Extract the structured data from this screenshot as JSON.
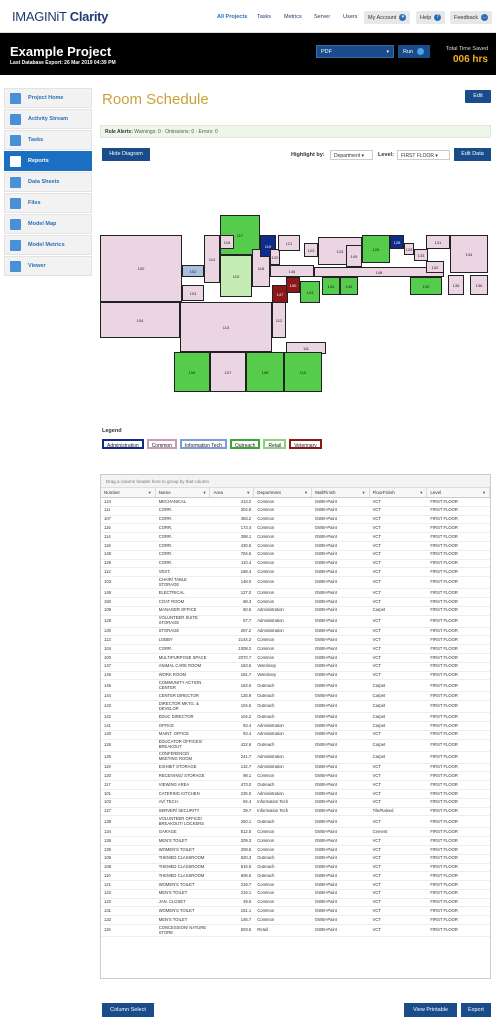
{
  "topnav": {
    "logo_brand": "IMAGINiT",
    "logo_product": "Clarity",
    "links": [
      "All Projects",
      "Tasks",
      "Metrics",
      "Server",
      "Users"
    ],
    "my_account": "My Account",
    "help": "Help",
    "help_icon": "?",
    "feedback": "Feedback"
  },
  "header": {
    "project_title": "Example Project",
    "last_export": "Last Database Export: 26 Mar 2019 04:39 PM",
    "format_select": "PDF",
    "run_label": "Run",
    "time_saved_label": "Total Time Saved",
    "time_saved_value": "006 hrs"
  },
  "sidebar": {
    "items": [
      {
        "label": "Project Home",
        "icon": "home-icon"
      },
      {
        "label": "Activity Stream",
        "icon": "arrows-icon"
      },
      {
        "label": "Tasks",
        "icon": "document-icon"
      },
      {
        "label": "Reports",
        "icon": "report-icon"
      },
      {
        "label": "Data Sheets",
        "icon": "datasheet-icon"
      },
      {
        "label": "Files",
        "icon": "folder-icon"
      },
      {
        "label": "Model Map",
        "icon": "globe-icon"
      },
      {
        "label": "Model Metrics",
        "icon": "bar-chart-icon"
      },
      {
        "label": "Viewer",
        "icon": "viewer-icon"
      }
    ],
    "active": "Reports"
  },
  "page": {
    "title": "Room Schedule",
    "edit_label": "Edit",
    "rule_alerts_label": "Rule Alerts:",
    "rule_alerts_text": "Warnings: 0  ·  Omissions: 0  ·  Errors: 0",
    "hide_diagram": "Hide Diagram",
    "highlight_label": "Highlight by:",
    "highlight_value": "Department",
    "level_label": "Level:",
    "level_value": "FIRST FLOOR",
    "edit_data": "Edit Data"
  },
  "legend": {
    "title": "Legend",
    "items": [
      {
        "label": "Administration",
        "color": "#102b8a"
      },
      {
        "label": "Common",
        "color": "#c89ab8"
      },
      {
        "label": "Information Tech",
        "color": "#7a9ed6"
      },
      {
        "label": "Outreach",
        "color": "#3aa832"
      },
      {
        "label": "Retail",
        "color": "#8fd07a"
      },
      {
        "label": "Veterinary",
        "color": "#8e1818"
      }
    ]
  },
  "plan_rooms": [
    "117",
    "100",
    "102",
    "114",
    "116",
    "118",
    "119",
    "120",
    "121",
    "123",
    "124",
    "126",
    "128",
    "130",
    "131",
    "133",
    "134",
    "135",
    "103",
    "104",
    "113",
    "115",
    "112",
    "143",
    "144",
    "145",
    "146",
    "147",
    "148",
    "149",
    "150",
    "129",
    "111",
    "106",
    "107",
    "108",
    "110",
    "136",
    "132"
  ],
  "grid": {
    "group_hint": "Drag a column header here to group by that column",
    "columns": [
      "Number",
      "Name",
      "Area",
      "Department",
      "WallFinish",
      "FloorFinish",
      "Level"
    ],
    "rows": [
      [
        "124",
        "MECHANICAL",
        "413.2",
        "Common",
        "GWB+Paint",
        "VCT",
        "FIRST FLOOR"
      ],
      [
        "111",
        "CORR.",
        "304.8",
        "Common",
        "GWB+Paint",
        "VCT",
        "FIRST FLOOR"
      ],
      [
        "107",
        "CORR.",
        "383.2",
        "Common",
        "GWB+Paint",
        "VCT",
        "FIRST FLOOR"
      ],
      [
        "116",
        "CORR.",
        "173.4",
        "Common",
        "GWB+Paint",
        "VCT",
        "FIRST FLOOR"
      ],
      [
        "114",
        "CORR.",
        "398.1",
        "Common",
        "GWB+Paint",
        "VCT",
        "FIRST FLOOR"
      ],
      [
        "118",
        "CORR.",
        "430.5",
        "Common",
        "GWB+Paint",
        "VCT",
        "FIRST FLOOR"
      ],
      [
        "148",
        "CORR.",
        "784.6",
        "Common",
        "GWB+Paint",
        "VCT",
        "FIRST FLOOR"
      ],
      [
        "129",
        "CORR.",
        "110.4",
        "Common",
        "GWB+Paint",
        "VCT",
        "FIRST FLOOR"
      ],
      [
        "112",
        "VEST.",
        "188.4",
        "Common",
        "GWB+Paint",
        "VCT",
        "FIRST FLOOR"
      ],
      [
        "103",
        "CHAIR/ TABLE STORAGE",
        "148.0",
        "Common",
        "GWB+Paint",
        "VCT",
        "FIRST FLOOR"
      ],
      [
        "149",
        "ELECTRICAL",
        "127.0",
        "Common",
        "GWB+Paint",
        "VCT",
        "FIRST FLOOR"
      ],
      [
        "150",
        "COAT ROOM",
        "68.3",
        "Common",
        "GWB+Paint",
        "VCT",
        "FIRST FLOOR"
      ],
      [
        "109",
        "MANAGER OFFICE",
        "60.5",
        "Administration",
        "GWB+Paint",
        "Carpet",
        "FIRST FLOOR"
      ],
      [
        "128",
        "VOLUNTEER SUITE STORAGE",
        "67.7",
        "Administration",
        "GWB+Paint",
        "VCT",
        "FIRST FLOOR"
      ],
      [
        "130",
        "STORAGE",
        "287.2",
        "Administration",
        "GWB+Paint",
        "VCT",
        "FIRST FLOOR"
      ],
      [
        "113",
        "LOBBY",
        "2144.2",
        "Common",
        "GWB+Paint",
        "VCT",
        "FIRST FLOOR"
      ],
      [
        "104",
        "CORR.",
        "1008.2",
        "Common",
        "GWB+Paint",
        "VCT",
        "FIRST FLOOR"
      ],
      [
        "100",
        "MULTIPURPOSE SPACE",
        "2070.7",
        "Common",
        "GWB+Paint",
        "VCT",
        "FIRST FLOOR"
      ],
      [
        "147",
        "ANIMAL CARE ROOM",
        "163.5",
        "Veterinary",
        "GWB+Paint",
        "VCT",
        "FIRST FLOOR"
      ],
      [
        "146",
        "WORK ROOM",
        "161.7",
        "Veterinary",
        "GWB+Paint",
        "VCT",
        "FIRST FLOOR"
      ],
      [
        "145",
        "COMMUNITY ACTION CENTER",
        "163.5",
        "Outreach",
        "GWB+Paint",
        "Carpet",
        "FIRST FLOOR"
      ],
      [
        "144",
        "CENTER DIRECTOR",
        "125.9",
        "Outreach",
        "GWB+Paint",
        "Carpet",
        "FIRST FLOOR"
      ],
      [
        "143",
        "DIRECTOR MKTG. & DEVELOP.",
        "104.5",
        "Outreach",
        "GWB+Paint",
        "Carpet",
        "FIRST FLOOR"
      ],
      [
        "142",
        "EDUC DIRECTOR",
        "104.2",
        "Outreach",
        "GWB+Paint",
        "Carpet",
        "FIRST FLOOR"
      ],
      [
        "141",
        "OFFICE",
        "93.4",
        "Administration",
        "GWB+Paint",
        "Carpet",
        "FIRST FLOOR"
      ],
      [
        "140",
        "MAINT. OFFICE",
        "93.4",
        "Administration",
        "GWB+Paint",
        "VCT",
        "FIRST FLOOR"
      ],
      [
        "126",
        "EDUCATOR OFFICES/ BREAKOUT",
        "422.6",
        "Outreach",
        "GWB+Paint",
        "Carpet",
        "FIRST FLOOR"
      ],
      [
        "125",
        "CONFERENCE/ MEETING ROOM",
        "241.7",
        "Administration",
        "GWB+Paint",
        "Carpet",
        "FIRST FLOOR"
      ],
      [
        "119",
        "EXHIBIT STORAGE",
        "132.7",
        "Administration",
        "GWB+Paint",
        "VCT",
        "FIRST FLOOR"
      ],
      [
        "120",
        "RECEIVING/ STORAGE",
        "98.1",
        "Common",
        "GWB+Paint",
        "VCT",
        "FIRST FLOOR"
      ],
      [
        "117",
        "VIEWING AREA",
        "473.0",
        "Outreach",
        "GWB+Paint",
        "VCT",
        "FIRST FLOOR"
      ],
      [
        "101",
        "CATERING KITCHEN",
        "235.0",
        "Administration",
        "GWB+Paint",
        "VCT",
        "FIRST FLOOR"
      ],
      [
        "102",
        "AV/ TECH.",
        "94.4",
        "Information Tech",
        "GWB+Paint",
        "VCT",
        "FIRST FLOOR"
      ],
      [
        "127",
        "SERVER/ SECURITY",
        "39.7",
        "Information Tech",
        "GWB+Paint",
        "Tile/Raised",
        "FIRST FLOOR"
      ],
      [
        "138",
        "VOLUNTEER OFFICE/ BREAKOUT/ LOCKERS",
        "250.1",
        "Outreach",
        "GWB+Paint",
        "VCT",
        "FIRST FLOOR"
      ],
      [
        "134",
        "GARAGE",
        "512.5",
        "Common",
        "GWB+Paint",
        "Cement",
        "FIRST FLOOR"
      ],
      [
        "136",
        "MEN'S TOILET",
        "209.3",
        "Common",
        "GWB+Paint",
        "VCT",
        "FIRST FLOOR"
      ],
      [
        "135",
        "WOMEN'S TOILET",
        "208.6",
        "Common",
        "GWB+Paint",
        "VCT",
        "FIRST FLOOR"
      ],
      [
        "106",
        "THEMED CLASSROOM",
        "620.3",
        "Outreach",
        "GWB+Paint",
        "VCT",
        "FIRST FLOOR"
      ],
      [
        "108",
        "THEMED CLASSROOM",
        "615.6",
        "Outreach",
        "GWB+Paint",
        "VCT",
        "FIRST FLOOR"
      ],
      [
        "110",
        "THEMED CLASSROOM",
        "608.6",
        "Outreach",
        "GWB+Paint",
        "VCT",
        "FIRST FLOOR"
      ],
      [
        "121",
        "WOMEN'S TOILET",
        "219.7",
        "Common",
        "GWB+Paint",
        "VCT",
        "FIRST FLOOR"
      ],
      [
        "123",
        "MEN'S TOILET",
        "215.1",
        "Common",
        "GWB+Paint",
        "VCT",
        "FIRST FLOOR"
      ],
      [
        "122",
        "JAN. CLOSET",
        "49.5",
        "Common",
        "GWB+Paint",
        "VCT",
        "FIRST FLOOR"
      ],
      [
        "131",
        "WOMEN'S TOILET",
        "151.1",
        "Common",
        "GWB+Paint",
        "VCT",
        "FIRST FLOOR"
      ],
      [
        "132",
        "MEN'S TOILET",
        "146.7",
        "Common",
        "GWB+Paint",
        "VCT",
        "FIRST FLOOR"
      ],
      [
        "115",
        "CONCESSION/ NATURE STORE",
        "503.5",
        "Retail",
        "GWB+Paint",
        "VCT",
        "FIRST FLOOR"
      ]
    ]
  },
  "footer": {
    "column_select": "Column Select",
    "view_printable": "View Printable",
    "export": "Export"
  }
}
